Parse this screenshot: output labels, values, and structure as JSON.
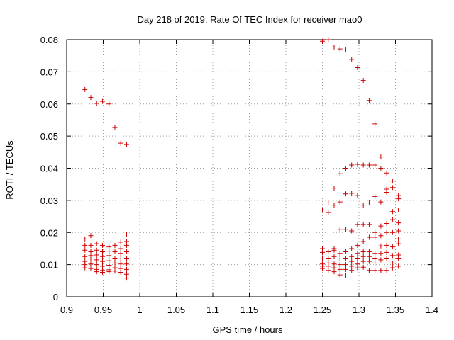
{
  "chart_data": {
    "type": "scatter",
    "title": "Day 218 of 2019, Rate Of TEC Index for receiver mao0",
    "xlabel": "GPS time / hours",
    "ylabel": "ROTI / TECUs",
    "xlim": [
      0.9,
      1.4
    ],
    "ylim": [
      0,
      0.08
    ],
    "grid": true,
    "marker": "plus",
    "color": "#cc0000",
    "xticks": [
      "0.9",
      "0.95",
      "1",
      "1.05",
      "1.1",
      "1.15",
      "1.2",
      "1.25",
      "1.3",
      "1.35",
      "1.4"
    ],
    "yticks": [
      "0",
      "0.01",
      "0.02",
      "0.03",
      "0.04",
      "0.05",
      "0.06",
      "0.07",
      "0.08"
    ],
    "series": [
      {
        "name": "ROTI",
        "points": [
          [
            0.925,
            0.0645
          ],
          [
            0.933,
            0.062
          ],
          [
            0.941,
            0.0602
          ],
          [
            0.949,
            0.0608
          ],
          [
            0.958,
            0.06
          ],
          [
            0.966,
            0.0527
          ],
          [
            0.974,
            0.0478
          ],
          [
            0.982,
            0.0474
          ],
          [
            0.925,
            0.018
          ],
          [
            0.925,
            0.016
          ],
          [
            0.925,
            0.0145
          ],
          [
            0.925,
            0.0125
          ],
          [
            0.925,
            0.011
          ],
          [
            0.925,
            0.01
          ],
          [
            0.925,
            0.009
          ],
          [
            0.933,
            0.019
          ],
          [
            0.933,
            0.016
          ],
          [
            0.933,
            0.014
          ],
          [
            0.933,
            0.0128
          ],
          [
            0.933,
            0.0118
          ],
          [
            0.933,
            0.0102
          ],
          [
            0.933,
            0.0088
          ],
          [
            0.941,
            0.0165
          ],
          [
            0.941,
            0.0145
          ],
          [
            0.941,
            0.013
          ],
          [
            0.941,
            0.0115
          ],
          [
            0.941,
            0.01
          ],
          [
            0.941,
            0.0085
          ],
          [
            0.941,
            0.0078
          ],
          [
            0.949,
            0.016
          ],
          [
            0.949,
            0.014
          ],
          [
            0.949,
            0.0125
          ],
          [
            0.949,
            0.011
          ],
          [
            0.949,
            0.0095
          ],
          [
            0.949,
            0.0082
          ],
          [
            0.949,
            0.0076
          ],
          [
            0.958,
            0.0155
          ],
          [
            0.958,
            0.0142
          ],
          [
            0.958,
            0.0128
          ],
          [
            0.958,
            0.0112
          ],
          [
            0.958,
            0.0098
          ],
          [
            0.958,
            0.0084
          ],
          [
            0.958,
            0.0078
          ],
          [
            0.966,
            0.016
          ],
          [
            0.966,
            0.014
          ],
          [
            0.966,
            0.012
          ],
          [
            0.966,
            0.0105
          ],
          [
            0.966,
            0.009
          ],
          [
            0.966,
            0.008
          ],
          [
            0.974,
            0.017
          ],
          [
            0.974,
            0.015
          ],
          [
            0.974,
            0.0135
          ],
          [
            0.974,
            0.0118
          ],
          [
            0.974,
            0.0102
          ],
          [
            0.974,
            0.0088
          ],
          [
            0.974,
            0.0076
          ],
          [
            0.982,
            0.0195
          ],
          [
            0.982,
            0.0172
          ],
          [
            0.982,
            0.016
          ],
          [
            0.982,
            0.014
          ],
          [
            0.982,
            0.012
          ],
          [
            0.982,
            0.0102
          ],
          [
            0.982,
            0.0085
          ],
          [
            0.982,
            0.007
          ],
          [
            0.982,
            0.0058
          ],
          [
            1.25,
            0.0795
          ],
          [
            1.258,
            0.08
          ],
          [
            1.266,
            0.0777
          ],
          [
            1.274,
            0.0771
          ],
          [
            1.282,
            0.0768
          ],
          [
            1.29,
            0.0738
          ],
          [
            1.298,
            0.0713
          ],
          [
            1.306,
            0.0673
          ],
          [
            1.314,
            0.0611
          ],
          [
            1.322,
            0.0538
          ],
          [
            1.33,
            0.0435
          ],
          [
            1.25,
            0.027
          ],
          [
            1.258,
            0.0292
          ],
          [
            1.258,
            0.0262
          ],
          [
            1.266,
            0.0338
          ],
          [
            1.266,
            0.0285
          ],
          [
            1.274,
            0.0383
          ],
          [
            1.274,
            0.0295
          ],
          [
            1.282,
            0.04
          ],
          [
            1.282,
            0.032
          ],
          [
            1.29,
            0.041
          ],
          [
            1.29,
            0.0322
          ],
          [
            1.298,
            0.0412
          ],
          [
            1.298,
            0.0315
          ],
          [
            1.306,
            0.041
          ],
          [
            1.306,
            0.0285
          ],
          [
            1.314,
            0.041
          ],
          [
            1.314,
            0.0292
          ],
          [
            1.322,
            0.041
          ],
          [
            1.322,
            0.0312
          ],
          [
            1.33,
            0.04
          ],
          [
            1.33,
            0.0295
          ],
          [
            1.338,
            0.0385
          ],
          [
            1.338,
            0.0335
          ],
          [
            1.338,
            0.0325
          ],
          [
            1.346,
            0.036
          ],
          [
            1.346,
            0.034
          ],
          [
            1.354,
            0.0315
          ],
          [
            1.354,
            0.0305
          ],
          [
            1.354,
            0.027
          ],
          [
            1.25,
            0.015
          ],
          [
            1.25,
            0.0138
          ],
          [
            1.25,
            0.0118
          ],
          [
            1.25,
            0.0102
          ],
          [
            1.25,
            0.0095
          ],
          [
            1.25,
            0.0088
          ],
          [
            1.258,
            0.014
          ],
          [
            1.258,
            0.012
          ],
          [
            1.258,
            0.0105
          ],
          [
            1.258,
            0.0095
          ],
          [
            1.258,
            0.0082
          ],
          [
            1.266,
            0.015
          ],
          [
            1.266,
            0.0145
          ],
          [
            1.266,
            0.0125
          ],
          [
            1.266,
            0.0102
          ],
          [
            1.266,
            0.009
          ],
          [
            1.266,
            0.0078
          ],
          [
            1.274,
            0.021
          ],
          [
            1.274,
            0.0135
          ],
          [
            1.274,
            0.0118
          ],
          [
            1.274,
            0.01
          ],
          [
            1.274,
            0.0085
          ],
          [
            1.274,
            0.0068
          ],
          [
            1.282,
            0.021
          ],
          [
            1.282,
            0.014
          ],
          [
            1.282,
            0.012
          ],
          [
            1.282,
            0.01
          ],
          [
            1.282,
            0.0085
          ],
          [
            1.282,
            0.0065
          ],
          [
            1.29,
            0.0205
          ],
          [
            1.29,
            0.015
          ],
          [
            1.29,
            0.0125
          ],
          [
            1.29,
            0.011
          ],
          [
            1.29,
            0.0095
          ],
          [
            1.29,
            0.0082
          ],
          [
            1.298,
            0.0225
          ],
          [
            1.298,
            0.016
          ],
          [
            1.298,
            0.0135
          ],
          [
            1.298,
            0.012
          ],
          [
            1.298,
            0.0102
          ],
          [
            1.298,
            0.009
          ],
          [
            1.306,
            0.0225
          ],
          [
            1.306,
            0.0172
          ],
          [
            1.306,
            0.014
          ],
          [
            1.306,
            0.0125
          ],
          [
            1.306,
            0.011
          ],
          [
            1.306,
            0.0092
          ],
          [
            1.314,
            0.0225
          ],
          [
            1.314,
            0.0185
          ],
          [
            1.314,
            0.014
          ],
          [
            1.314,
            0.0125
          ],
          [
            1.314,
            0.011
          ],
          [
            1.314,
            0.0082
          ],
          [
            1.322,
            0.02
          ],
          [
            1.322,
            0.0185
          ],
          [
            1.322,
            0.0135
          ],
          [
            1.322,
            0.012
          ],
          [
            1.322,
            0.0105
          ],
          [
            1.322,
            0.0082
          ],
          [
            1.33,
            0.022
          ],
          [
            1.33,
            0.019
          ],
          [
            1.33,
            0.0158
          ],
          [
            1.33,
            0.0135
          ],
          [
            1.33,
            0.0115
          ],
          [
            1.33,
            0.0082
          ],
          [
            1.338,
            0.0228
          ],
          [
            1.338,
            0.02
          ],
          [
            1.338,
            0.016
          ],
          [
            1.338,
            0.0138
          ],
          [
            1.338,
            0.012
          ],
          [
            1.338,
            0.0082
          ],
          [
            1.346,
            0.0265
          ],
          [
            1.346,
            0.024
          ],
          [
            1.346,
            0.02
          ],
          [
            1.346,
            0.0155
          ],
          [
            1.346,
            0.0128
          ],
          [
            1.346,
            0.0105
          ],
          [
            1.346,
            0.009
          ],
          [
            1.354,
            0.023
          ],
          [
            1.354,
            0.0205
          ],
          [
            1.354,
            0.018
          ],
          [
            1.354,
            0.0165
          ],
          [
            1.354,
            0.013
          ],
          [
            1.354,
            0.012
          ],
          [
            1.354,
            0.0095
          ]
        ]
      }
    ]
  }
}
